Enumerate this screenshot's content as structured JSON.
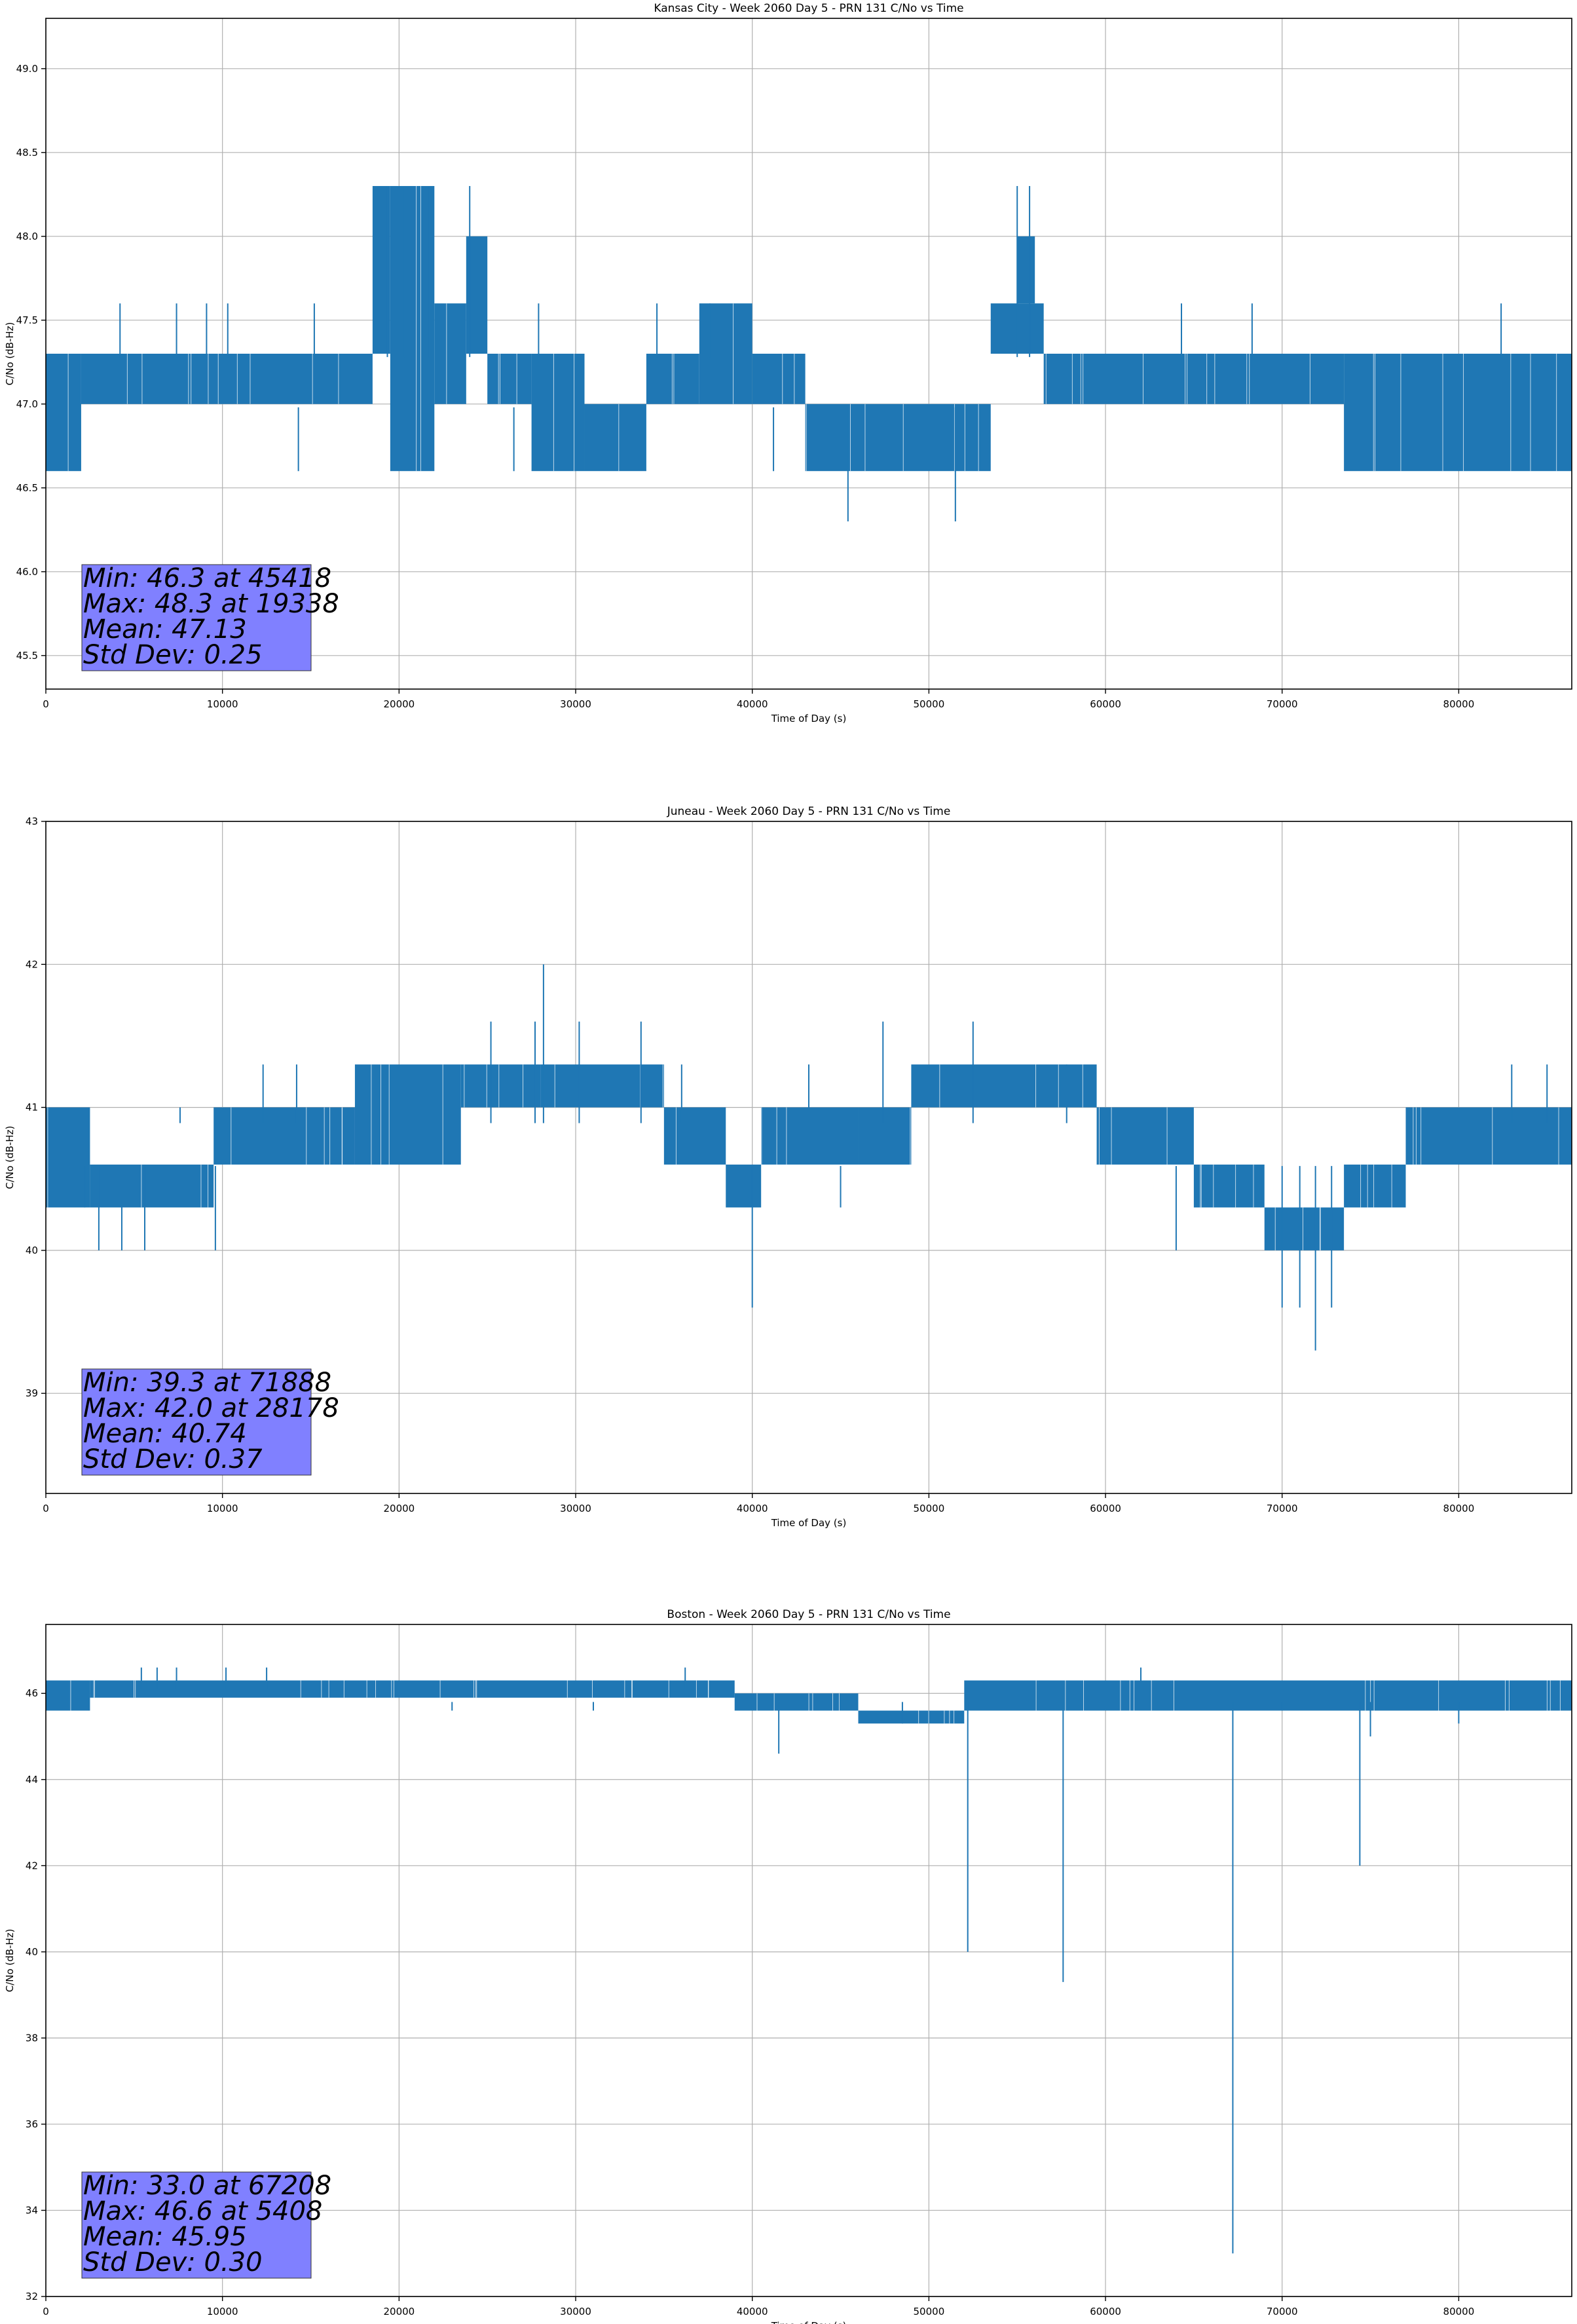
{
  "chart_data": [
    {
      "type": "line",
      "title": "Kansas City - Week 2060 Day 5 - PRN 131 C/No vs Time",
      "xlabel": "Time of Day (s)",
      "ylabel": "C/No (dB-Hz)",
      "xlim": [
        0,
        86400
      ],
      "ylim": [
        45.3,
        49.3
      ],
      "xticks": [
        0,
        10000,
        20000,
        30000,
        40000,
        50000,
        60000,
        70000,
        80000
      ],
      "yticks": [
        45.5,
        46.0,
        46.5,
        47.0,
        47.5,
        48.0,
        48.5,
        49.0
      ],
      "ytick_labels": [
        "45.5",
        "46.0",
        "46.5",
        "47.0",
        "47.5",
        "48.0",
        "48.5",
        "49.0"
      ],
      "grid": true,
      "color": "#1f77b4",
      "series": [
        {
          "segments": [
            {
              "x": [
                0,
                2000
              ],
              "range": [
                46.6,
                47.3
              ]
            },
            {
              "x": [
                2000,
                18500
              ],
              "range": [
                47.0,
                47.3
              ]
            },
            {
              "x": [
                18500,
                19500
              ],
              "range": [
                47.3,
                48.3
              ]
            },
            {
              "x": [
                19500,
                22000
              ],
              "range": [
                46.6,
                48.3
              ]
            },
            {
              "x": [
                22000,
                23800
              ],
              "range": [
                47.0,
                47.6
              ]
            },
            {
              "x": [
                23800,
                25000
              ],
              "range": [
                47.3,
                48.0
              ]
            },
            {
              "x": [
                25000,
                27500
              ],
              "range": [
                47.0,
                47.3
              ]
            },
            {
              "x": [
                27500,
                30500
              ],
              "range": [
                46.6,
                47.3
              ]
            },
            {
              "x": [
                30500,
                34000
              ],
              "range": [
                46.6,
                47.0
              ]
            },
            {
              "x": [
                34000,
                37000
              ],
              "range": [
                47.0,
                47.3
              ]
            },
            {
              "x": [
                37000,
                40000
              ],
              "range": [
                47.0,
                47.6
              ]
            },
            {
              "x": [
                40000,
                43000
              ],
              "range": [
                47.0,
                47.3
              ]
            },
            {
              "x": [
                43000,
                53500
              ],
              "range": [
                46.6,
                47.0
              ]
            },
            {
              "x": [
                53500,
                56500
              ],
              "range": [
                47.3,
                47.6
              ]
            },
            {
              "x": [
                55000,
                56000
              ],
              "range": [
                47.6,
                48.0
              ]
            },
            {
              "x": [
                56500,
                73500
              ],
              "range": [
                47.0,
                47.3
              ]
            },
            {
              "x": [
                73500,
                86400
              ],
              "range": [
                46.6,
                47.3
              ]
            }
          ],
          "spikes": [
            [
              4200,
              47.6
            ],
            [
              7400,
              47.6
            ],
            [
              9100,
              47.6
            ],
            [
              10300,
              47.6
            ],
            [
              15200,
              47.6
            ],
            [
              19338,
              48.3
            ],
            [
              20300,
              48.3
            ],
            [
              21700,
              48.3
            ],
            [
              24000,
              48.3
            ],
            [
              27900,
              47.6
            ],
            [
              34600,
              47.6
            ],
            [
              37600,
              47.6
            ],
            [
              45418,
              46.3
            ],
            [
              51500,
              46.3
            ],
            [
              55000,
              48.3
            ],
            [
              55700,
              48.3
            ],
            [
              64300,
              47.6
            ],
            [
              68300,
              47.6
            ],
            [
              82400,
              47.6
            ],
            [
              26500,
              46.6
            ],
            [
              14300,
              46.6
            ],
            [
              41200,
              46.6
            ]
          ]
        }
      ],
      "annotation": {
        "lines": [
          "Min: 46.3 at 45418",
          "Max: 48.3 at 19338",
          "Mean: 47.13",
          "Std Dev: 0.25"
        ],
        "background": "#8080ff"
      }
    },
    {
      "type": "line",
      "title": "Juneau - Week 2060 Day 5 - PRN 131 C/No vs Time",
      "xlabel": "Time of Day (s)",
      "ylabel": "C/No (dB-Hz)",
      "xlim": [
        0,
        86400
      ],
      "ylim": [
        38.3,
        43.0
      ],
      "xticks": [
        0,
        10000,
        20000,
        30000,
        40000,
        50000,
        60000,
        70000,
        80000
      ],
      "yticks": [
        39,
        40,
        41,
        42,
        43
      ],
      "ytick_labels": [
        "39",
        "40",
        "41",
        "42",
        "43"
      ],
      "grid": true,
      "color": "#1f77b4",
      "series": [
        {
          "segments": [
            {
              "x": [
                0,
                2500
              ],
              "range": [
                40.3,
                41.0
              ]
            },
            {
              "x": [
                2500,
                9500
              ],
              "range": [
                40.3,
                40.6
              ]
            },
            {
              "x": [
                9500,
                17500
              ],
              "range": [
                40.6,
                41.0
              ]
            },
            {
              "x": [
                17500,
                23500
              ],
              "range": [
                40.6,
                41.3
              ]
            },
            {
              "x": [
                23500,
                28000
              ],
              "range": [
                41.0,
                41.3
              ]
            },
            {
              "x": [
                28000,
                35000
              ],
              "range": [
                41.0,
                41.3
              ]
            },
            {
              "x": [
                35000,
                38500
              ],
              "range": [
                40.6,
                41.0
              ]
            },
            {
              "x": [
                38500,
                40500
              ],
              "range": [
                40.3,
                40.6
              ]
            },
            {
              "x": [
                40500,
                46000
              ],
              "range": [
                40.6,
                41.0
              ]
            },
            {
              "x": [
                46000,
                49000
              ],
              "range": [
                40.6,
                41.0
              ]
            },
            {
              "x": [
                49000,
                59500
              ],
              "range": [
                41.0,
                41.3
              ]
            },
            {
              "x": [
                59500,
                65000
              ],
              "range": [
                40.6,
                41.0
              ]
            },
            {
              "x": [
                65000,
                69000
              ],
              "range": [
                40.3,
                40.6
              ]
            },
            {
              "x": [
                69000,
                73500
              ],
              "range": [
                40.0,
                40.3
              ]
            },
            {
              "x": [
                73500,
                77000
              ],
              "range": [
                40.3,
                40.6
              ]
            },
            {
              "x": [
                77000,
                86400
              ],
              "range": [
                40.6,
                41.0
              ]
            }
          ],
          "spikes": [
            [
              3000,
              40.0
            ],
            [
              4300,
              40.0
            ],
            [
              5600,
              40.0
            ],
            [
              7600,
              41.0
            ],
            [
              9600,
              40.0
            ],
            [
              12300,
              41.3
            ],
            [
              14200,
              41.3
            ],
            [
              28178,
              42.0
            ],
            [
              25200,
              41.6
            ],
            [
              27700,
              41.6
            ],
            [
              30200,
              41.6
            ],
            [
              33700,
              41.6
            ],
            [
              36000,
              41.3
            ],
            [
              40000,
              39.6
            ],
            [
              43200,
              41.3
            ],
            [
              47400,
              41.6
            ],
            [
              52500,
              41.6
            ],
            [
              57800,
              41.3
            ],
            [
              71888,
              39.3
            ],
            [
              70000,
              39.6
            ],
            [
              71000,
              39.6
            ],
            [
              72800,
              39.6
            ],
            [
              68800,
              40.3
            ],
            [
              83000,
              41.3
            ],
            [
              85000,
              41.3
            ],
            [
              64000,
              40.0
            ],
            [
              62000,
              40.6
            ],
            [
              45000,
              40.3
            ],
            [
              34000,
              40.6
            ],
            [
              2200,
              40.3
            ]
          ]
        }
      ],
      "annotation": {
        "lines": [
          "Min: 39.3 at 71888",
          "Max: 42.0 at 28178",
          "Mean: 40.74",
          "Std Dev: 0.37"
        ],
        "background": "#8080ff"
      }
    },
    {
      "type": "line",
      "title": "Boston - Week 2060 Day 5 - PRN 131 C/No vs Time",
      "xlabel": "Time of Day (s)",
      "ylabel": "C/No (dB-Hz)",
      "xlim": [
        0,
        86400
      ],
      "ylim": [
        32.0,
        47.6
      ],
      "xticks": [
        0,
        10000,
        20000,
        30000,
        40000,
        50000,
        60000,
        70000,
        80000
      ],
      "yticks": [
        32,
        34,
        36,
        38,
        40,
        42,
        44,
        46
      ],
      "ytick_labels": [
        "32",
        "34",
        "36",
        "38",
        "40",
        "42",
        "44",
        "46"
      ],
      "grid": true,
      "color": "#1f77b4",
      "series": [
        {
          "segments": [
            {
              "x": [
                0,
                2500
              ],
              "range": [
                45.6,
                46.3
              ]
            },
            {
              "x": [
                2500,
                39000
              ],
              "range": [
                45.9,
                46.3
              ]
            },
            {
              "x": [
                39000,
                46000
              ],
              "range": [
                45.6,
                46.0
              ]
            },
            {
              "x": [
                46000,
                52000
              ],
              "range": [
                45.3,
                45.6
              ]
            },
            {
              "x": [
                52000,
                86400
              ],
              "range": [
                45.6,
                46.3
              ]
            }
          ],
          "spikes": [
            [
              5408,
              46.6
            ],
            [
              6300,
              46.6
            ],
            [
              7400,
              46.6
            ],
            [
              10200,
              46.6
            ],
            [
              12500,
              46.6
            ],
            [
              36200,
              46.6
            ],
            [
              62000,
              46.6
            ],
            [
              41500,
              44.6
            ],
            [
              52200,
              40.0
            ],
            [
              57600,
              39.3
            ],
            [
              67208,
              33.0
            ],
            [
              74400,
              42.0
            ],
            [
              75000,
              45.0
            ],
            [
              23000,
              45.6
            ],
            [
              31000,
              45.6
            ],
            [
              48500,
              45.3
            ],
            [
              70000,
              45.6
            ],
            [
              80000,
              45.3
            ]
          ]
        }
      ],
      "annotation": {
        "lines": [
          "Min: 33.0 at 67208",
          "Max: 46.6 at 5408",
          "Mean: 45.95",
          "Std Dev: 0.30"
        ],
        "background": "#8080ff"
      }
    }
  ]
}
